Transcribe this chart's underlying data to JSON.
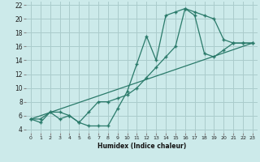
{
  "background_color": "#cceaea",
  "grid_color": "#aacccc",
  "line_color": "#2a7a6a",
  "xlabel": "Humidex (Indice chaleur)",
  "xlim": [
    -0.5,
    23.5
  ],
  "ylim": [
    3.5,
    22.5
  ],
  "yticks": [
    4,
    6,
    8,
    10,
    12,
    14,
    16,
    18,
    20,
    22
  ],
  "xticks": [
    0,
    1,
    2,
    3,
    4,
    5,
    6,
    7,
    8,
    9,
    10,
    11,
    12,
    13,
    14,
    15,
    16,
    17,
    18,
    19,
    20,
    21,
    22,
    23
  ],
  "line1_x": [
    0,
    1,
    2,
    3,
    4,
    5,
    6,
    7,
    8,
    9,
    10,
    11,
    12,
    13,
    14,
    15,
    16,
    17,
    18,
    19,
    20,
    21,
    22,
    23
  ],
  "line1_y": [
    5.5,
    5.0,
    6.5,
    5.5,
    6.0,
    5.0,
    4.5,
    4.5,
    4.5,
    7.0,
    9.5,
    13.5,
    17.5,
    14.0,
    20.5,
    21.0,
    21.5,
    21.0,
    20.5,
    20.0,
    17.0,
    16.5,
    16.5,
    16.5
  ],
  "line2_x": [
    0,
    1,
    2,
    3,
    4,
    5,
    6,
    7,
    8,
    9,
    10,
    11,
    12,
    13,
    14,
    15,
    16,
    17,
    18,
    19,
    20,
    21,
    22,
    23
  ],
  "line2_y": [
    5.5,
    5.5,
    6.5,
    6.5,
    6.0,
    5.0,
    6.5,
    8.0,
    8.0,
    8.5,
    9.0,
    10.0,
    11.5,
    13.0,
    14.5,
    16.0,
    21.5,
    20.5,
    15.0,
    14.5,
    15.5,
    16.5,
    16.5,
    16.5
  ],
  "line3_x": [
    0,
    23
  ],
  "line3_y": [
    5.5,
    16.5
  ]
}
